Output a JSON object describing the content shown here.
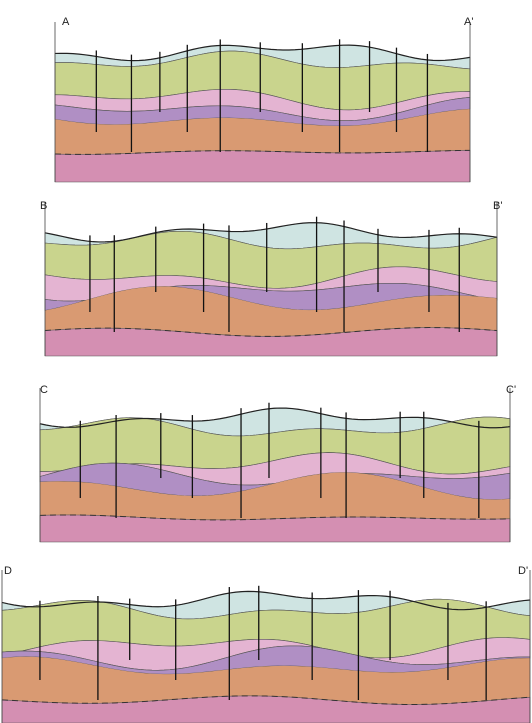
{
  "sections": [
    {
      "start": "A",
      "end": "A'"
    },
    {
      "start": "B",
      "end": "B'"
    },
    {
      "start": "C",
      "end": "C'"
    },
    {
      "start": "D",
      "end": "D'"
    }
  ]
}
